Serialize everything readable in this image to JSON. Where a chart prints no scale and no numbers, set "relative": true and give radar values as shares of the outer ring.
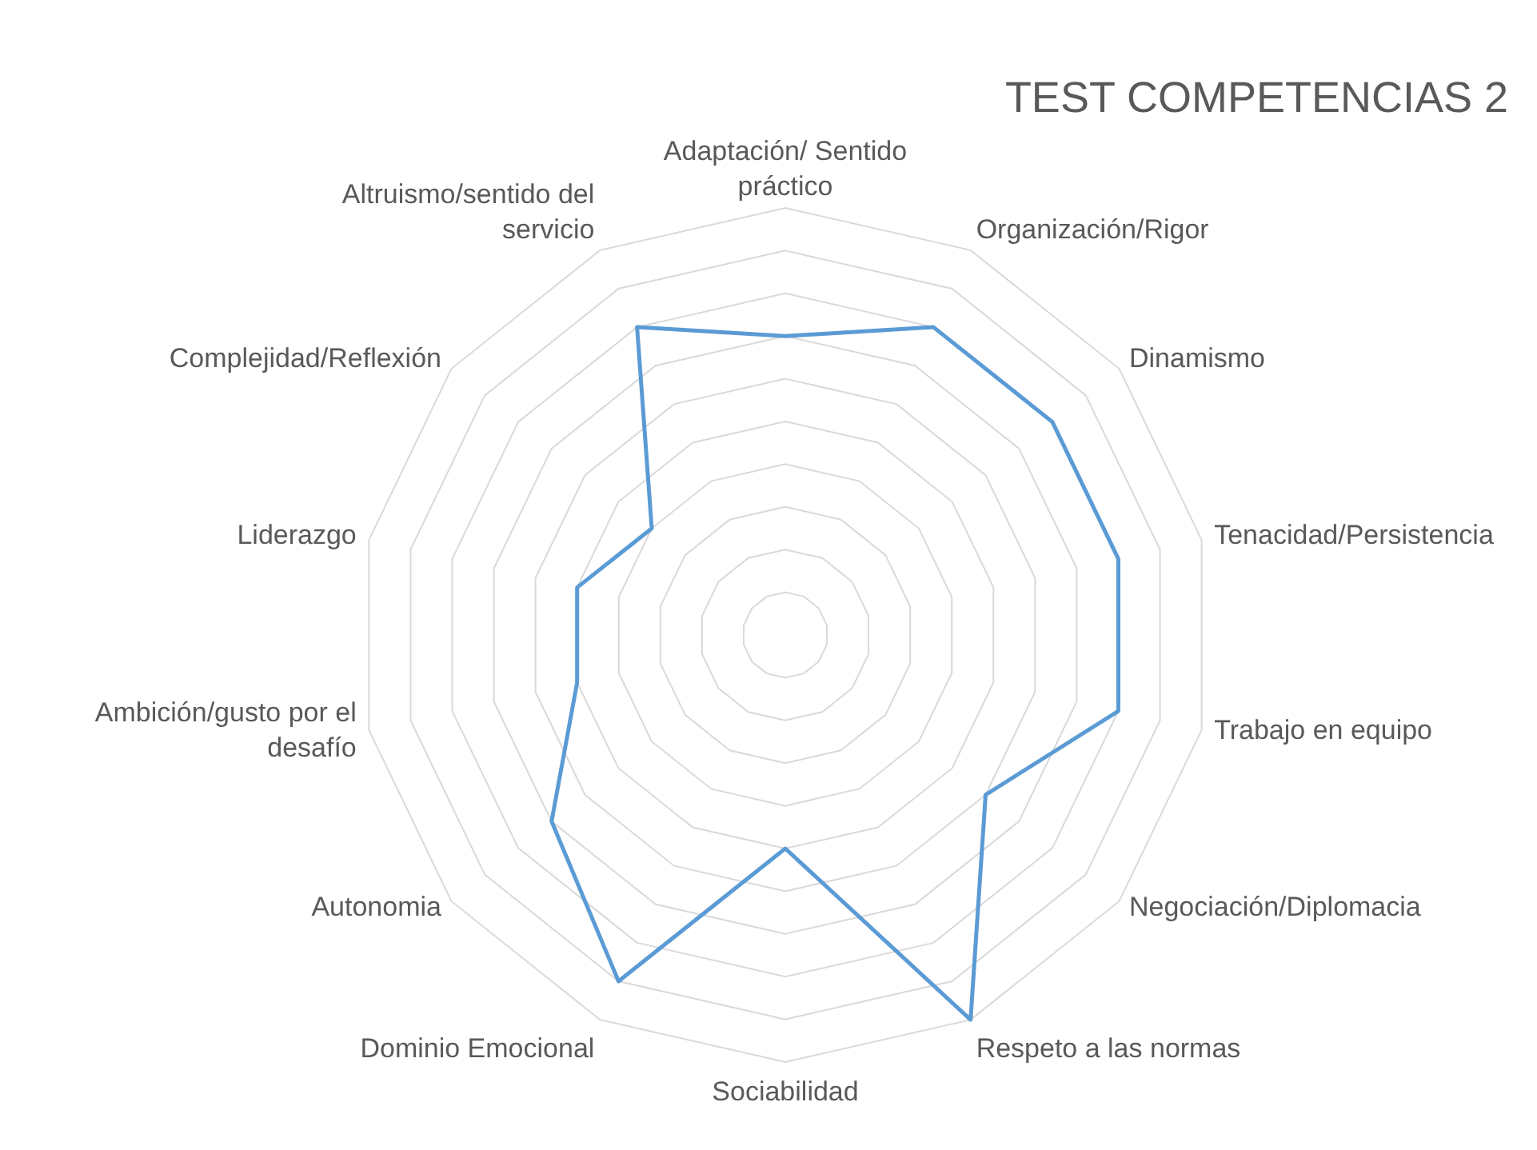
{
  "chart_data": {
    "type": "radar",
    "title": "TEST COMPETENCIAS 2",
    "relative": true,
    "grid": true,
    "marker": "none",
    "categories": [
      "Adaptación/ Sentido práctico",
      "Organización/Rigor",
      "Dinamismo",
      "Tenacidad/Persistencia",
      "Trabajo en equipo",
      "Negociación/Diplomacia",
      "Respeto a las normas",
      "Sociabilidad",
      "Dominio Emocional",
      "Autonomia",
      "Ambición/gusto por el desafío",
      "Liderazgo",
      "Complejidad/Reflexión",
      "Altruismo/sentido del servicio"
    ],
    "series": [
      {
        "color": "#5b9bd5",
        "values": [
          0.7,
          0.8,
          0.8,
          0.8,
          0.8,
          0.6,
          1,
          0.5,
          0.9,
          0.7,
          0.5,
          0.5,
          0.4,
          0.8
        ]
      }
    ]
  }
}
